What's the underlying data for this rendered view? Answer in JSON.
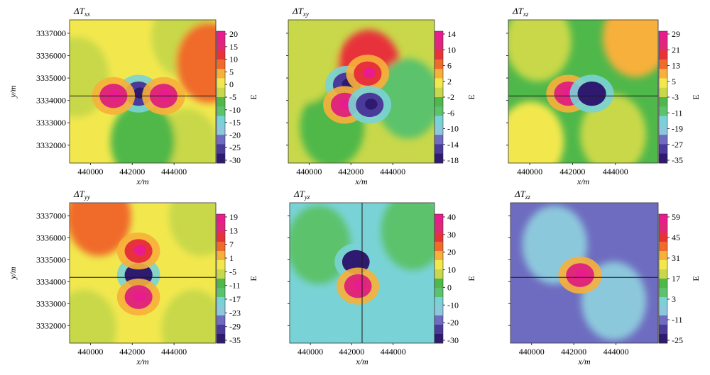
{
  "figure": {
    "colormap": [
      "#2e1a6e",
      "#4a3a9a",
      "#6e6cc0",
      "#8cc8dc",
      "#79d3d6",
      "#5cc26c",
      "#4fb84a",
      "#c8d84a",
      "#f2e84e",
      "#f7b03a",
      "#f06a2a",
      "#e8323a",
      "#e0287a",
      "#e81c8c"
    ],
    "background_color": "#79d3d6"
  },
  "chart_data": [
    {
      "type": "heatmap",
      "title": "ΔT",
      "title_sub": "xx",
      "xlabel": "x/m",
      "ylabel": "y/m",
      "x_ticks": [
        "440000",
        "442000",
        "444000"
      ],
      "y_ticks": [
        "3337000",
        "3336000",
        "3335000",
        "3334000",
        "3333000",
        "3332000"
      ],
      "colorbar": {
        "ticks": [
          "20",
          "15",
          "10",
          "5",
          "0",
          "-5",
          "-10",
          "-15",
          "-20",
          "-25",
          "-30"
        ],
        "unit": "E",
        "range": [
          -30,
          22
        ]
      },
      "profile_line": "horizontal at y≈3334200",
      "anomalies": [
        {
          "x": 442300,
          "y": 3334300,
          "value": -28,
          "shape": "ellipse"
        },
        {
          "x": 441100,
          "y": 3334200,
          "value": 18,
          "shape": "ellipse"
        },
        {
          "x": 443500,
          "y": 3334200,
          "value": 18,
          "shape": "ellipse"
        }
      ]
    },
    {
      "type": "heatmap",
      "title": "ΔT",
      "title_sub": "xy",
      "xlabel": "x/m",
      "ylabel": "",
      "x_ticks": [
        "440000",
        "442000",
        "444000"
      ],
      "y_ticks": [],
      "colorbar": {
        "ticks": [
          "14",
          "10",
          "6",
          "2",
          "-2",
          "-6",
          "-10",
          "-14",
          "-18"
        ],
        "unit": "E",
        "range": [
          -18,
          16
        ]
      },
      "profile_line": "",
      "anomalies": [
        {
          "x": 441800,
          "y": 3334700,
          "value": -16
        },
        {
          "x": 442800,
          "y": 3335200,
          "value": 12
        },
        {
          "x": 441700,
          "y": 3333800,
          "value": 14
        },
        {
          "x": 442900,
          "y": 3333800,
          "value": -16
        }
      ]
    },
    {
      "type": "heatmap",
      "title": "ΔT",
      "title_sub": "xz",
      "xlabel": "x/m",
      "ylabel": "",
      "x_ticks": [
        "440000",
        "442000",
        "444000"
      ],
      "y_ticks": [],
      "colorbar": {
        "ticks": [
          "29",
          "21",
          "13",
          "5",
          "-3",
          "-11",
          "-19",
          "-27",
          "-35"
        ],
        "unit": "E",
        "range": [
          -35,
          34
        ]
      },
      "profile_line": "horizontal at y≈3334200",
      "anomalies": [
        {
          "x": 441800,
          "y": 3334300,
          "value": 30
        },
        {
          "x": 442900,
          "y": 3334300,
          "value": -33
        }
      ]
    },
    {
      "type": "heatmap",
      "title": "ΔT",
      "title_sub": "yy",
      "xlabel": "x/m",
      "ylabel": "y/m",
      "x_ticks": [
        "440000",
        "442000",
        "444000"
      ],
      "y_ticks": [
        "3337000",
        "3336000",
        "3335000",
        "3334000",
        "3333000",
        "3332000"
      ],
      "colorbar": {
        "ticks": [
          "19",
          "13",
          "7",
          "1",
          "-5",
          "-11",
          "-17",
          "-23",
          "-29",
          "-35"
        ],
        "unit": "E",
        "range": [
          -35,
          22
        ]
      },
      "profile_line": "horizontal at y≈3334200",
      "anomalies": [
        {
          "x": 442300,
          "y": 3334300,
          "value": -33
        },
        {
          "x": 442300,
          "y": 3335400,
          "value": 14
        },
        {
          "x": 442300,
          "y": 3333300,
          "value": 16
        }
      ]
    },
    {
      "type": "heatmap",
      "title": "ΔT",
      "title_sub": "yz",
      "xlabel": "x/m",
      "ylabel": "",
      "x_ticks": [
        "440000",
        "442000",
        "444000"
      ],
      "y_ticks": [],
      "colorbar": {
        "ticks": [
          "40",
          "30",
          "20",
          "10",
          "0",
          "-10",
          "-20",
          "-30"
        ],
        "unit": "E",
        "range": [
          -32,
          48
        ]
      },
      "profile_line": "vertical at x≈442500",
      "anomalies": [
        {
          "x": 442200,
          "y": 3334900,
          "value": -30
        },
        {
          "x": 442300,
          "y": 3333800,
          "value": 42
        }
      ]
    },
    {
      "type": "heatmap",
      "title": "ΔT",
      "title_sub": "zz",
      "xlabel": "x/m",
      "ylabel": "",
      "x_ticks": [
        "440000",
        "442000",
        "444000"
      ],
      "y_ticks": [],
      "colorbar": {
        "ticks": [
          "59",
          "45",
          "31",
          "17",
          "3",
          "-11",
          "-25"
        ],
        "unit": "E",
        "range": [
          -25,
          64
        ]
      },
      "profile_line": "horizontal at y≈3334200",
      "anomalies": [
        {
          "x": 442300,
          "y": 3334300,
          "value": 60
        }
      ]
    }
  ]
}
